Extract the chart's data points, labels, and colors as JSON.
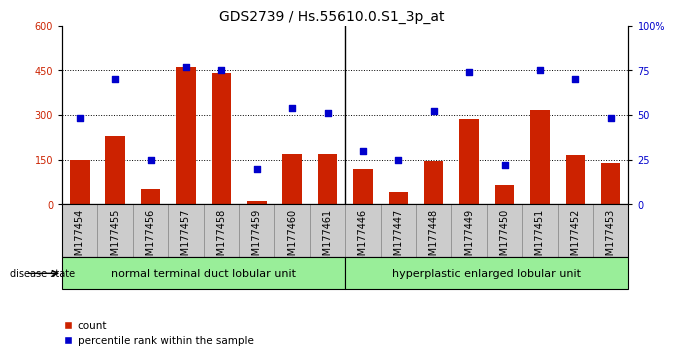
{
  "title": "GDS2739 / Hs.55610.0.S1_3p_at",
  "samples": [
    "GSM177454",
    "GSM177455",
    "GSM177456",
    "GSM177457",
    "GSM177458",
    "GSM177459",
    "GSM177460",
    "GSM177461",
    "GSM177446",
    "GSM177447",
    "GSM177448",
    "GSM177449",
    "GSM177450",
    "GSM177451",
    "GSM177452",
    "GSM177453"
  ],
  "counts": [
    150,
    230,
    50,
    460,
    440,
    10,
    170,
    170,
    120,
    40,
    145,
    285,
    65,
    315,
    165,
    140
  ],
  "percentiles": [
    48,
    70,
    25,
    77,
    75,
    20,
    54,
    51,
    30,
    25,
    52,
    74,
    22,
    75,
    70,
    48
  ],
  "group1_label": "normal terminal duct lobular unit",
  "group2_label": "hyperplastic enlarged lobular unit",
  "group1_count": 8,
  "group2_count": 8,
  "ylim_left": [
    0,
    600
  ],
  "ylim_right": [
    0,
    100
  ],
  "yticks_left": [
    0,
    150,
    300,
    450,
    600
  ],
  "yticks_right": [
    0,
    25,
    50,
    75,
    100
  ],
  "ytick_labels_right": [
    "0",
    "25",
    "50",
    "75",
    "100%"
  ],
  "bar_color": "#cc2200",
  "scatter_color": "#0000cc",
  "group_bg": "#99ee99",
  "tick_bg": "#cccccc",
  "title_fontsize": 10,
  "tick_fontsize": 7,
  "label_fontsize": 8
}
